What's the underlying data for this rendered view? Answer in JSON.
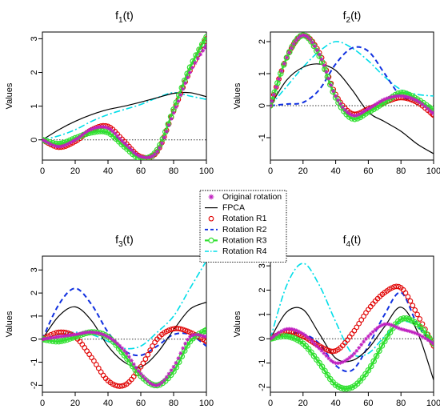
{
  "figure": {
    "legend": {
      "entries": [
        {
          "label": "Original rotation",
          "color": "#c020c0",
          "style": "star"
        },
        {
          "label": "FPCA",
          "color": "#000000",
          "style": "solid"
        },
        {
          "label": "Rotation R1",
          "color": "#e00000",
          "style": "circles"
        },
        {
          "label": "Rotation R2",
          "color": "#1030e0",
          "style": "dashed"
        },
        {
          "label": "Rotation R3",
          "color": "#30e030",
          "style": "line-dots"
        },
        {
          "label": "Rotation R4",
          "color": "#00dde8",
          "style": "dashdot"
        }
      ]
    }
  },
  "chart_data": [
    {
      "type": "line",
      "title_main": "f",
      "title_sub": "1",
      "title_suffix": "(t)",
      "ylabel": "Values",
      "xlim": [
        0,
        100
      ],
      "ylim": [
        -0.6,
        3.2
      ],
      "xticks": [
        0,
        20,
        40,
        60,
        80,
        100
      ],
      "yticks": [
        0,
        1,
        2,
        3
      ],
      "x": [
        0,
        10,
        20,
        30,
        40,
        50,
        60,
        70,
        80,
        90,
        100
      ],
      "series": [
        {
          "name": "Original rotation",
          "values": [
            0,
            -0.2,
            0,
            0.32,
            0.35,
            -0.1,
            -0.5,
            -0.35,
            0.8,
            2.0,
            2.8
          ]
        },
        {
          "name": "FPCA",
          "values": [
            0,
            0.3,
            0.55,
            0.75,
            0.9,
            1.0,
            1.12,
            1.25,
            1.38,
            1.4,
            1.28
          ]
        },
        {
          "name": "Rotation R1",
          "values": [
            0,
            -0.22,
            -0.05,
            0.3,
            0.4,
            -0.05,
            -0.5,
            -0.35,
            0.85,
            2.05,
            3.0
          ]
        },
        {
          "name": "Rotation R2",
          "values": [
            0,
            -0.2,
            0.0,
            0.25,
            0.2,
            -0.1,
            -0.48,
            -0.35,
            0.9,
            2.1,
            3.05
          ]
        },
        {
          "name": "Rotation R3",
          "values": [
            0,
            -0.12,
            0.05,
            0.22,
            0.22,
            -0.2,
            -0.55,
            -0.3,
            0.9,
            2.15,
            3.05
          ]
        },
        {
          "name": "Rotation R4",
          "values": [
            0,
            0.12,
            0.3,
            0.55,
            0.75,
            0.9,
            1.05,
            1.25,
            1.4,
            1.3,
            1.2
          ]
        }
      ]
    },
    {
      "type": "line",
      "title_main": "f",
      "title_sub": "2",
      "title_suffix": "(t)",
      "ylabel": "Values",
      "xlim": [
        0,
        100
      ],
      "ylim": [
        -1.7,
        2.3
      ],
      "xticks": [
        0,
        20,
        40,
        60,
        80,
        100
      ],
      "yticks": [
        -1,
        0,
        1,
        2
      ],
      "x": [
        0,
        10,
        20,
        30,
        40,
        50,
        60,
        70,
        80,
        90,
        100
      ],
      "series": [
        {
          "name": "Original rotation",
          "values": [
            0,
            1.5,
            2.2,
            1.6,
            0.3,
            -0.3,
            -0.1,
            0.2,
            0.3,
            0.15,
            -0.25
          ]
        },
        {
          "name": "FPCA",
          "values": [
            0,
            0.8,
            1.2,
            1.3,
            1.1,
            0.5,
            -0.2,
            -0.5,
            -0.8,
            -1.2,
            -1.5
          ]
        },
        {
          "name": "Rotation R1",
          "values": [
            0,
            1.5,
            2.2,
            1.65,
            0.35,
            -0.25,
            -0.1,
            0.1,
            0.25,
            0.1,
            -0.3
          ]
        },
        {
          "name": "Rotation R2",
          "values": [
            0,
            0.05,
            0.1,
            0.5,
            1.3,
            1.8,
            1.7,
            1.0,
            0.3,
            0.15,
            -0.1
          ]
        },
        {
          "name": "Rotation R3",
          "values": [
            0,
            1.5,
            2.2,
            1.55,
            0.25,
            -0.4,
            -0.2,
            0.1,
            0.4,
            0.2,
            -0.15
          ]
        },
        {
          "name": "Rotation R4",
          "values": [
            0,
            0.6,
            1.2,
            1.7,
            2.0,
            1.8,
            1.4,
            0.9,
            0.5,
            0.35,
            0.3
          ]
        }
      ]
    },
    {
      "type": "line",
      "title_main": "f",
      "title_sub": "3",
      "title_suffix": "(t)",
      "ylabel": "Values",
      "xlim": [
        0,
        100
      ],
      "ylim": [
        -2.3,
        3.6
      ],
      "xticks": [
        0,
        20,
        40,
        60,
        80,
        100
      ],
      "yticks": [
        -2,
        -1,
        0,
        1,
        2,
        3
      ],
      "x": [
        0,
        10,
        20,
        30,
        40,
        50,
        60,
        70,
        80,
        90,
        100
      ],
      "series": [
        {
          "name": "Original rotation",
          "values": [
            0,
            0.1,
            0.2,
            0.3,
            0.1,
            -0.5,
            -1.5,
            -2.0,
            -1.2,
            0.1,
            0.1
          ]
        },
        {
          "name": "FPCA",
          "values": [
            0,
            1.0,
            1.4,
            0.8,
            -0.3,
            -1.0,
            -1.2,
            -0.6,
            0.4,
            1.3,
            1.6
          ]
        },
        {
          "name": "Rotation R1",
          "values": [
            0,
            0.3,
            0.1,
            -0.8,
            -1.8,
            -2.0,
            -1.2,
            0.0,
            0.45,
            0.3,
            -0.1
          ]
        },
        {
          "name": "Rotation R2",
          "values": [
            0,
            1.5,
            2.2,
            1.5,
            0.3,
            -0.5,
            -0.7,
            -0.3,
            0.2,
            0.2,
            -0.3
          ]
        },
        {
          "name": "Rotation R3",
          "values": [
            0,
            -0.1,
            0.1,
            0.3,
            0.1,
            -0.7,
            -1.6,
            -2.0,
            -1.4,
            -0.1,
            0.4
          ]
        },
        {
          "name": "Rotation R4",
          "values": [
            0,
            0.2,
            0.3,
            0.2,
            -0.1,
            -0.4,
            -0.3,
            0.3,
            1.0,
            2.2,
            3.4
          ]
        }
      ]
    },
    {
      "type": "line",
      "title_main": "f",
      "title_sub": "4",
      "title_suffix": "(t)",
      "ylabel": "Values",
      "xlim": [
        0,
        100
      ],
      "ylim": [
        -2.2,
        3.4
      ],
      "xticks": [
        0,
        20,
        40,
        60,
        80,
        100
      ],
      "yticks": [
        -2,
        -1,
        0,
        1,
        2,
        3
      ],
      "x": [
        0,
        10,
        20,
        30,
        40,
        50,
        60,
        70,
        80,
        90,
        100
      ],
      "series": [
        {
          "name": "Original rotation",
          "values": [
            0,
            0.4,
            0.2,
            -0.4,
            -1.0,
            -0.7,
            0.1,
            0.6,
            0.4,
            0.2,
            -0.2
          ]
        },
        {
          "name": "FPCA",
          "values": [
            0,
            1.1,
            1.2,
            0.2,
            -0.8,
            -0.9,
            -0.4,
            0.5,
            1.3,
            0.3,
            -1.7
          ]
        },
        {
          "name": "Rotation R1",
          "values": [
            0,
            0.3,
            0.1,
            -0.3,
            -0.5,
            0.2,
            1.2,
            1.9,
            2.1,
            1.0,
            -0.3
          ]
        },
        {
          "name": "Rotation R2",
          "values": [
            0,
            0.2,
            0.2,
            -0.2,
            -1.1,
            -1.3,
            -0.3,
            1.0,
            1.9,
            0.6,
            -0.3
          ]
        },
        {
          "name": "Rotation R3",
          "values": [
            0,
            0.1,
            -0.2,
            -1.0,
            -1.9,
            -2.0,
            -1.3,
            -0.1,
            0.8,
            0.6,
            -0.2
          ]
        },
        {
          "name": "Rotation R4",
          "values": [
            0,
            2.2,
            3.1,
            2.2,
            0.7,
            -0.6,
            -0.6,
            0.1,
            0.7,
            0.5,
            -0.2
          ]
        }
      ]
    }
  ]
}
